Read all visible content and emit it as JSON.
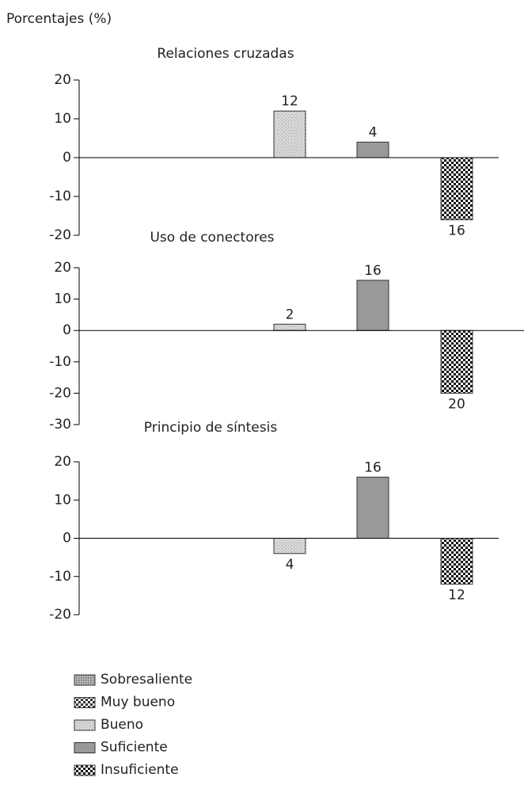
{
  "y_label": "Porcentajes (%)",
  "legend": [
    "Sobresaliente",
    "Muy bueno",
    "Bueno",
    "Suficiente",
    "Insuficiente"
  ],
  "chart_data": [
    {
      "type": "bar",
      "title": "Relaciones cruzadas",
      "values": [
        null,
        null,
        12,
        4,
        -16
      ],
      "value_labels": [
        null,
        null,
        "12",
        "4",
        "16"
      ],
      "ylim": [
        -20,
        20
      ],
      "yticks": [
        -20,
        -10,
        0,
        10,
        20
      ]
    },
    {
      "type": "bar",
      "title": "Uso de conectores",
      "values": [
        null,
        null,
        2,
        16,
        -20
      ],
      "value_labels": [
        null,
        null,
        "2",
        "16",
        "20"
      ],
      "ylim": [
        -30,
        20
      ],
      "yticks": [
        -30,
        -20,
        -10,
        0,
        10,
        20
      ]
    },
    {
      "type": "bar",
      "title": "Principio de síntesis",
      "values": [
        null,
        null,
        -4,
        16,
        -12
      ],
      "value_labels": [
        null,
        null,
        "4",
        "16",
        "12"
      ],
      "ylim": [
        -20,
        20
      ],
      "yticks": [
        -20,
        -10,
        0,
        10,
        20
      ]
    }
  ]
}
